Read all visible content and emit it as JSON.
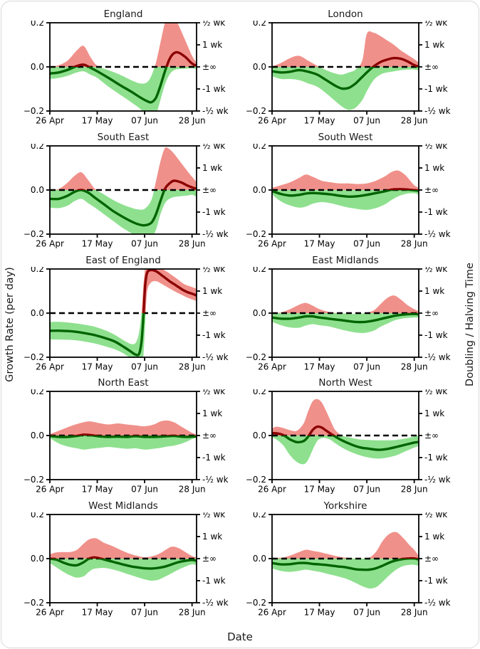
{
  "page": {
    "left_axis_label": "Growth Rate (per day)",
    "right_axis_label": "Doubling / Halving Time",
    "x_axis_label": "Date"
  },
  "axes": {
    "x_domain": [
      0,
      65
    ],
    "x_tick_days": [
      0,
      21,
      42,
      63
    ],
    "x_tick_labels": [
      "26 Apr",
      "17 May",
      "07 Jun",
      "28 Jun"
    ],
    "ylim": [
      -0.2,
      0.2
    ],
    "left_ticks": [
      {
        "v": 0.2,
        "label": "0.2"
      },
      {
        "v": 0.0,
        "label": "0.0"
      },
      {
        "v": -0.2,
        "label": "−0.2"
      }
    ],
    "right_ticks": [
      {
        "v": 0.2,
        "label": "½ wk"
      },
      {
        "v": 0.1,
        "label": "1 wk"
      },
      {
        "v": 0.0,
        "label": "±∞"
      },
      {
        "v": -0.1,
        "label": "-1 wk"
      },
      {
        "v": -0.2,
        "label": "-½ wk"
      }
    ]
  },
  "colors": {
    "band_positive": "#f0908a",
    "band_negative": "#8ee08e",
    "line_positive": "#8b0000",
    "line_negative": "#006400",
    "zero_line": "#000000",
    "axis": "#000000"
  },
  "chart_data": [
    {
      "type": "line",
      "title": "England",
      "x": [
        0,
        4,
        8,
        12,
        15,
        18,
        21,
        26,
        31,
        36,
        40,
        43,
        45,
        47,
        49,
        51,
        53,
        55,
        57,
        60,
        63,
        65
      ],
      "mean": [
        -0.03,
        -0.025,
        -0.013,
        0.004,
        0.01,
        -0.004,
        -0.02,
        -0.05,
        -0.082,
        -0.112,
        -0.138,
        -0.155,
        -0.16,
        -0.14,
        -0.085,
        -0.02,
        0.035,
        0.062,
        0.065,
        0.045,
        0.015,
        0.005
      ],
      "upper": [
        0.0,
        0.008,
        0.03,
        0.075,
        0.095,
        0.045,
        0.005,
        -0.015,
        -0.035,
        -0.06,
        -0.075,
        -0.07,
        -0.04,
        0.02,
        0.11,
        0.2,
        0.24,
        0.23,
        0.19,
        0.12,
        0.05,
        0.02
      ],
      "lower": [
        -0.055,
        -0.05,
        -0.04,
        -0.025,
        -0.02,
        -0.035,
        -0.05,
        -0.09,
        -0.125,
        -0.16,
        -0.19,
        -0.225,
        -0.23,
        -0.215,
        -0.15,
        -0.08,
        -0.035,
        -0.015,
        -0.01,
        -0.008,
        -0.006,
        -0.01
      ]
    },
    {
      "type": "line",
      "title": "London",
      "x": [
        0,
        4,
        8,
        12,
        16,
        20,
        24,
        28,
        31,
        34,
        37,
        40,
        42,
        45,
        48,
        51,
        54,
        57,
        60,
        63,
        65
      ],
      "mean": [
        -0.02,
        -0.025,
        -0.022,
        -0.015,
        -0.022,
        -0.035,
        -0.06,
        -0.085,
        -0.098,
        -0.095,
        -0.075,
        -0.045,
        -0.025,
        0.002,
        0.022,
        0.033,
        0.04,
        0.037,
        0.025,
        0.008,
        0.002
      ],
      "upper": [
        0.002,
        0.018,
        0.04,
        0.05,
        0.028,
        0.005,
        -0.015,
        -0.03,
        -0.035,
        -0.025,
        -0.012,
        0.03,
        0.15,
        0.155,
        0.14,
        0.12,
        0.1,
        0.075,
        0.055,
        0.035,
        0.02
      ],
      "lower": [
        -0.042,
        -0.055,
        -0.055,
        -0.06,
        -0.075,
        -0.09,
        -0.12,
        -0.155,
        -0.18,
        -0.195,
        -0.185,
        -0.15,
        -0.11,
        -0.06,
        -0.035,
        -0.025,
        -0.02,
        -0.015,
        -0.012,
        -0.012,
        -0.015
      ]
    },
    {
      "type": "line",
      "title": "South East",
      "x": [
        0,
        4,
        8,
        11,
        14,
        17,
        20,
        24,
        28,
        32,
        36,
        39,
        42,
        45,
        47,
        49,
        51,
        53,
        55,
        58,
        61,
        63,
        65
      ],
      "mean": [
        -0.04,
        -0.04,
        -0.025,
        -0.008,
        0.0,
        -0.012,
        -0.035,
        -0.065,
        -0.095,
        -0.12,
        -0.142,
        -0.155,
        -0.16,
        -0.148,
        -0.11,
        -0.05,
        0.005,
        0.03,
        0.042,
        0.035,
        0.02,
        0.012,
        0.005
      ],
      "upper": [
        0.0,
        0.005,
        0.035,
        0.065,
        0.08,
        0.045,
        0.005,
        -0.02,
        -0.045,
        -0.065,
        -0.08,
        -0.088,
        -0.085,
        -0.045,
        0.04,
        0.13,
        0.19,
        0.185,
        0.165,
        0.125,
        0.085,
        0.06,
        0.035
      ],
      "lower": [
        -0.08,
        -0.082,
        -0.07,
        -0.05,
        -0.04,
        -0.06,
        -0.08,
        -0.11,
        -0.14,
        -0.17,
        -0.195,
        -0.215,
        -0.225,
        -0.22,
        -0.18,
        -0.11,
        -0.06,
        -0.04,
        -0.032,
        -0.028,
        -0.025,
        -0.022,
        -0.03
      ]
    },
    {
      "type": "line",
      "title": "South West",
      "x": [
        0,
        4,
        8,
        12,
        15,
        18,
        22,
        26,
        30,
        34,
        38,
        42,
        46,
        50,
        53,
        56,
        59,
        61,
        63,
        65
      ],
      "mean": [
        -0.005,
        -0.018,
        -0.025,
        -0.022,
        -0.016,
        -0.014,
        -0.016,
        -0.02,
        -0.026,
        -0.03,
        -0.028,
        -0.022,
        -0.014,
        -0.006,
        0.002,
        0.004,
        0.003,
        0.001,
        -0.001,
        -0.003
      ],
      "upper": [
        0.01,
        0.022,
        0.035,
        0.055,
        0.07,
        0.06,
        0.042,
        0.035,
        0.03,
        0.03,
        0.027,
        0.03,
        0.042,
        0.062,
        0.082,
        0.088,
        0.068,
        0.045,
        0.022,
        0.01
      ],
      "lower": [
        -0.02,
        -0.052,
        -0.07,
        -0.08,
        -0.075,
        -0.062,
        -0.055,
        -0.06,
        -0.07,
        -0.08,
        -0.086,
        -0.09,
        -0.082,
        -0.065,
        -0.045,
        -0.028,
        -0.018,
        -0.015,
        -0.015,
        -0.02
      ]
    },
    {
      "type": "line",
      "title": "East of England",
      "x": [
        0,
        5,
        10,
        15,
        20,
        25,
        29,
        33,
        36,
        38,
        39.5,
        40.6,
        41.4,
        42.2,
        43,
        44.5,
        47,
        50,
        53,
        56,
        59,
        61,
        63,
        65
      ],
      "mean": [
        -0.08,
        -0.08,
        -0.083,
        -0.09,
        -0.1,
        -0.115,
        -0.13,
        -0.155,
        -0.175,
        -0.188,
        -0.185,
        -0.13,
        -0.02,
        0.12,
        0.18,
        0.195,
        0.19,
        0.168,
        0.145,
        0.125,
        0.105,
        0.095,
        0.088,
        0.08
      ],
      "upper": [
        -0.04,
        -0.04,
        -0.045,
        -0.052,
        -0.062,
        -0.08,
        -0.1,
        -0.125,
        -0.14,
        -0.135,
        -0.09,
        0.0,
        0.12,
        0.2,
        0.23,
        0.24,
        0.225,
        0.2,
        0.18,
        0.158,
        0.135,
        0.125,
        0.118,
        0.11
      ],
      "lower": [
        -0.12,
        -0.12,
        -0.122,
        -0.128,
        -0.138,
        -0.152,
        -0.165,
        -0.185,
        -0.21,
        -0.235,
        -0.245,
        -0.24,
        -0.2,
        -0.06,
        0.09,
        0.135,
        0.145,
        0.13,
        0.112,
        0.095,
        0.08,
        0.07,
        0.062,
        0.055
      ]
    },
    {
      "type": "line",
      "title": "East Midlands",
      "x": [
        0,
        4,
        8,
        12,
        15,
        18,
        21,
        25,
        29,
        33,
        37,
        41,
        45,
        48,
        51,
        54,
        57,
        60,
        63,
        65
      ],
      "mean": [
        -0.02,
        -0.025,
        -0.025,
        -0.02,
        -0.015,
        -0.015,
        -0.02,
        -0.025,
        -0.03,
        -0.035,
        -0.04,
        -0.04,
        -0.034,
        -0.027,
        -0.02,
        -0.013,
        -0.008,
        -0.005,
        -0.004,
        -0.005
      ],
      "upper": [
        0.0,
        0.003,
        0.018,
        0.038,
        0.046,
        0.034,
        0.018,
        0.006,
        0.0,
        -0.002,
        -0.004,
        0.0,
        0.012,
        0.04,
        0.068,
        0.08,
        0.062,
        0.036,
        0.018,
        0.008
      ],
      "lower": [
        -0.04,
        -0.055,
        -0.065,
        -0.066,
        -0.056,
        -0.05,
        -0.055,
        -0.06,
        -0.07,
        -0.08,
        -0.088,
        -0.09,
        -0.08,
        -0.062,
        -0.048,
        -0.034,
        -0.026,
        -0.022,
        -0.02,
        -0.02
      ]
    },
    {
      "type": "line",
      "title": "North East",
      "x": [
        0,
        4,
        8,
        12,
        15,
        18,
        22,
        26,
        30,
        34,
        38,
        42,
        46,
        49,
        52,
        55,
        58,
        61,
        63,
        65
      ],
      "mean": [
        -0.002,
        -0.006,
        -0.006,
        -0.002,
        0.004,
        0.002,
        -0.004,
        -0.006,
        -0.005,
        -0.006,
        -0.003,
        -0.006,
        -0.006,
        -0.005,
        -0.003,
        -0.002,
        -0.005,
        -0.006,
        -0.005,
        -0.004
      ],
      "upper": [
        0.006,
        0.022,
        0.038,
        0.052,
        0.06,
        0.064,
        0.056,
        0.05,
        0.055,
        0.05,
        0.046,
        0.042,
        0.05,
        0.064,
        0.068,
        0.06,
        0.042,
        0.024,
        0.012,
        0.004
      ],
      "lower": [
        -0.012,
        -0.036,
        -0.05,
        -0.058,
        -0.064,
        -0.06,
        -0.056,
        -0.052,
        -0.056,
        -0.06,
        -0.058,
        -0.064,
        -0.06,
        -0.056,
        -0.05,
        -0.046,
        -0.038,
        -0.026,
        -0.016,
        -0.01
      ]
    },
    {
      "type": "line",
      "title": "North West",
      "x": [
        0,
        2,
        5,
        8,
        11,
        14,
        16,
        18,
        20,
        22,
        24,
        26,
        28,
        31,
        35,
        39,
        43,
        47,
        51,
        55,
        59,
        63,
        65
      ],
      "mean": [
        0.01,
        0.01,
        0.002,
        -0.018,
        -0.03,
        -0.025,
        -0.005,
        0.025,
        0.04,
        0.036,
        0.022,
        0.008,
        -0.005,
        -0.022,
        -0.04,
        -0.054,
        -0.06,
        -0.065,
        -0.061,
        -0.052,
        -0.042,
        -0.032,
        -0.03
      ],
      "upper": [
        0.032,
        0.04,
        0.034,
        0.024,
        0.022,
        0.055,
        0.11,
        0.155,
        0.165,
        0.15,
        0.11,
        0.065,
        0.025,
        0.0,
        -0.01,
        -0.018,
        -0.02,
        -0.022,
        -0.022,
        -0.02,
        -0.014,
        -0.005,
        0.0
      ],
      "lower": [
        -0.008,
        -0.018,
        -0.045,
        -0.09,
        -0.12,
        -0.13,
        -0.11,
        -0.065,
        -0.025,
        -0.012,
        -0.012,
        -0.02,
        -0.035,
        -0.055,
        -0.075,
        -0.09,
        -0.1,
        -0.105,
        -0.1,
        -0.09,
        -0.072,
        -0.055,
        -0.048
      ]
    },
    {
      "type": "line",
      "title": "West Midlands",
      "x": [
        0,
        3,
        6,
        9,
        12,
        15,
        17,
        19,
        21,
        24,
        27,
        30,
        33,
        36,
        39,
        42,
        45,
        48,
        51,
        54,
        57,
        60,
        63,
        65
      ],
      "mean": [
        0.0,
        -0.005,
        -0.018,
        -0.028,
        -0.03,
        -0.016,
        -0.002,
        0.005,
        0.004,
        -0.004,
        -0.012,
        -0.02,
        -0.028,
        -0.035,
        -0.04,
        -0.044,
        -0.045,
        -0.042,
        -0.036,
        -0.026,
        -0.016,
        -0.01,
        -0.006,
        -0.01
      ],
      "upper": [
        0.02,
        0.028,
        0.03,
        0.03,
        0.04,
        0.068,
        0.085,
        0.092,
        0.09,
        0.072,
        0.06,
        0.046,
        0.032,
        0.02,
        0.012,
        0.006,
        0.01,
        0.02,
        0.038,
        0.054,
        0.048,
        0.03,
        0.012,
        0.005
      ],
      "lower": [
        -0.02,
        -0.04,
        -0.06,
        -0.076,
        -0.086,
        -0.08,
        -0.062,
        -0.048,
        -0.044,
        -0.042,
        -0.047,
        -0.055,
        -0.065,
        -0.075,
        -0.085,
        -0.094,
        -0.1,
        -0.096,
        -0.082,
        -0.066,
        -0.05,
        -0.036,
        -0.026,
        -0.03
      ]
    },
    {
      "type": "line",
      "title": "Yorkshire",
      "x": [
        0,
        4,
        8,
        12,
        15,
        18,
        21,
        25,
        29,
        33,
        37,
        40,
        43,
        46,
        49,
        52,
        55,
        58,
        61,
        63,
        65
      ],
      "mean": [
        -0.02,
        -0.026,
        -0.025,
        -0.02,
        -0.02,
        -0.024,
        -0.026,
        -0.03,
        -0.035,
        -0.04,
        -0.048,
        -0.05,
        -0.05,
        -0.044,
        -0.032,
        -0.018,
        -0.008,
        -0.002,
        0.001,
        0.001,
        -0.004
      ],
      "upper": [
        0.004,
        0.004,
        0.014,
        0.03,
        0.04,
        0.035,
        0.03,
        0.02,
        0.01,
        0.004,
        0.0,
        0.0,
        0.004,
        0.03,
        0.08,
        0.112,
        0.12,
        0.095,
        0.06,
        0.04,
        0.012
      ],
      "lower": [
        -0.044,
        -0.056,
        -0.06,
        -0.055,
        -0.05,
        -0.055,
        -0.06,
        -0.07,
        -0.08,
        -0.092,
        -0.11,
        -0.125,
        -0.135,
        -0.13,
        -0.105,
        -0.075,
        -0.05,
        -0.034,
        -0.028,
        -0.028,
        -0.032
      ]
    }
  ]
}
